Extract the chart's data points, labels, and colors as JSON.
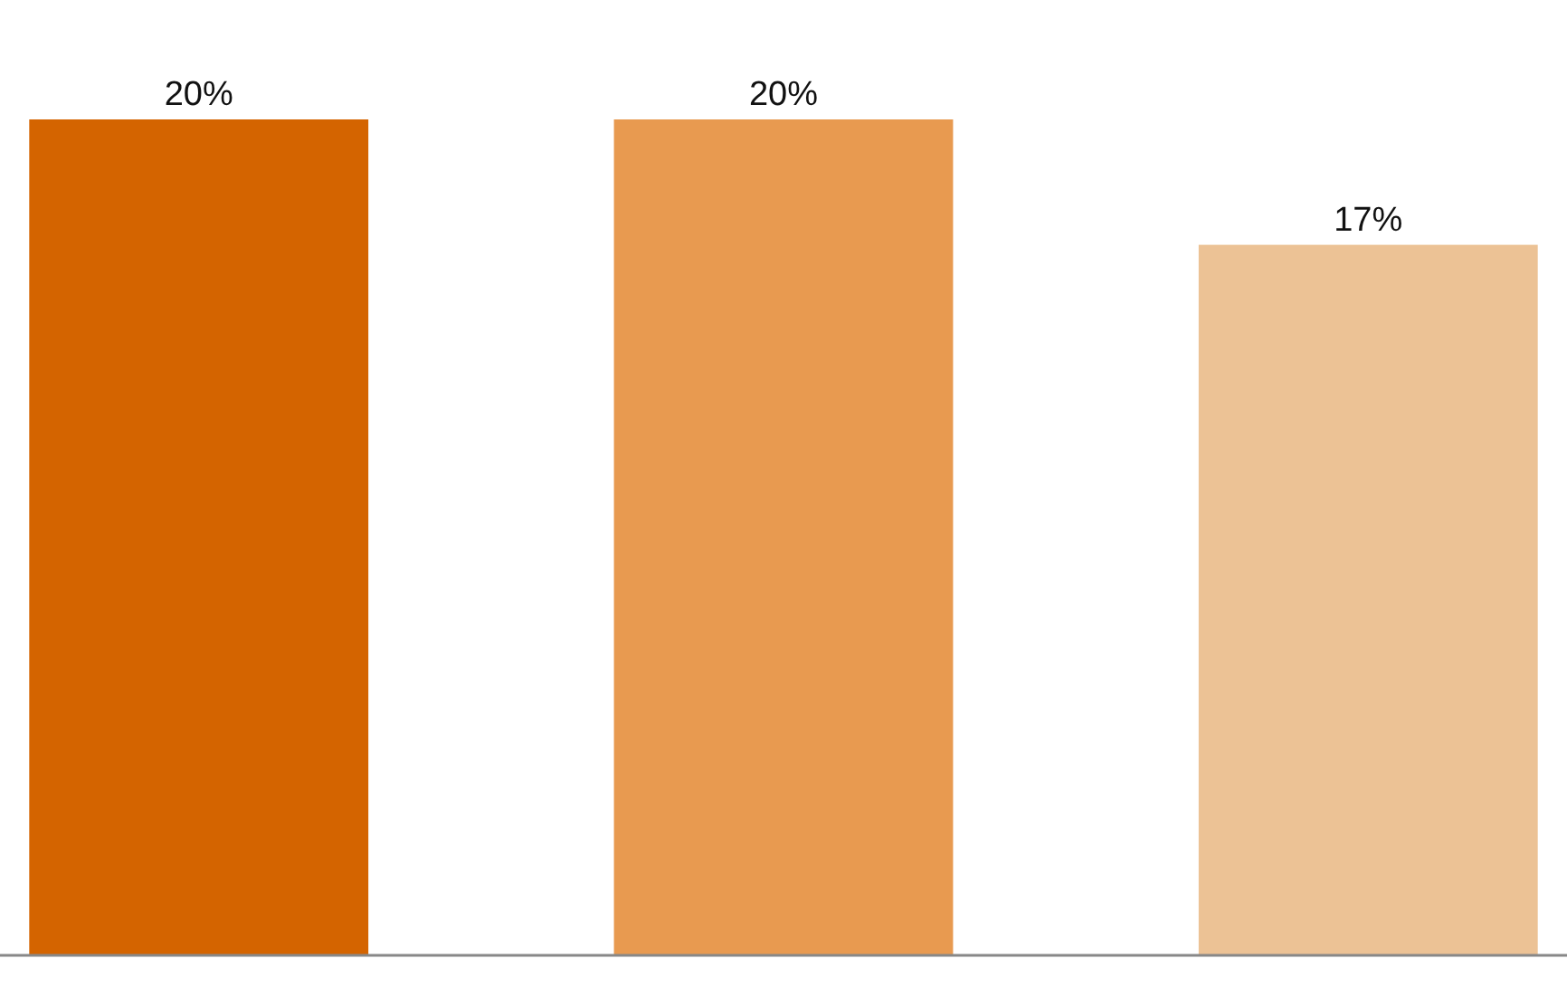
{
  "chart_data": {
    "type": "bar",
    "categories": [
      null,
      null,
      null
    ],
    "values": [
      20,
      20,
      17
    ],
    "colors": [
      "#d46400",
      "#e89a50",
      "#ecc295"
    ],
    "data_labels": true,
    "value_labels": [
      "20%",
      "20%",
      "17%"
    ]
  }
}
